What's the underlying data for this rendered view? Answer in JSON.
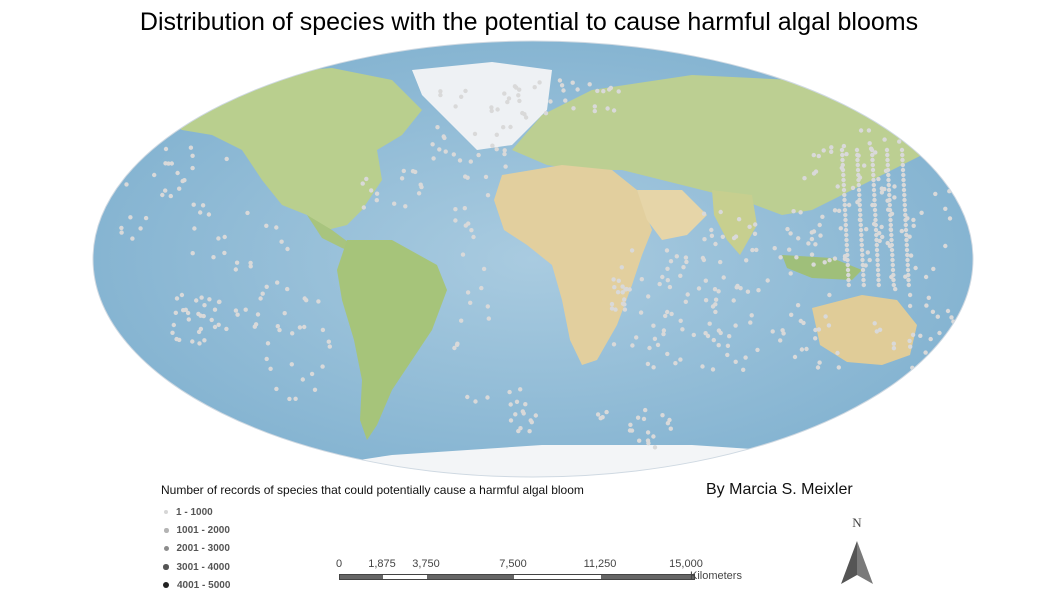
{
  "title": "Distribution of species with the potential to cause harmful algal blooms",
  "author": "By Marcia S. Meixler",
  "legend": {
    "title": "Number of records of species that could potentially cause a harmful algal bloom",
    "items": [
      {
        "label": "1 - 1000",
        "color": "#d6d6d6",
        "size": 4
      },
      {
        "label": "1001 - 2000",
        "color": "#b4b4b4",
        "size": 4.5
      },
      {
        "label": "2001 - 3000",
        "color": "#8c8c8c",
        "size": 5
      },
      {
        "label": "3001 - 4000",
        "color": "#555555",
        "size": 5.5
      },
      {
        "label": "4001 - 5000",
        "color": "#222222",
        "size": 6
      }
    ]
  },
  "scalebar": {
    "ticks": [
      "0",
      "1,875",
      "3,750",
      "7,500",
      "11,250",
      "15,000"
    ],
    "unit": "Kilometers"
  },
  "north_arrow": {
    "letter": "N"
  },
  "colors": {
    "ocean": "#a9cbe0",
    "ocean_deep": "#7fb0cf",
    "land": "#c9d6a2",
    "forest": "#9fbf7a",
    "desert": "#e5d3a6",
    "ice": "#f4f6f8",
    "record_point": "#d9d9d9"
  }
}
